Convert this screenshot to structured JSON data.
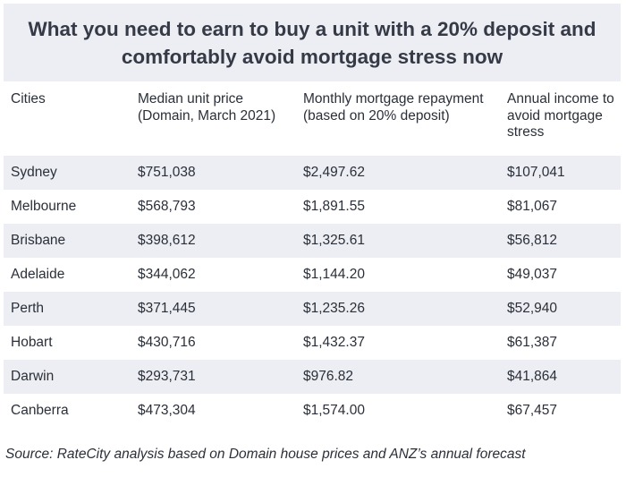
{
  "title": "What you need to earn to buy a unit with a 20% deposit and comfortably avoid mortgage stress now",
  "table": {
    "headers": [
      "Cities",
      "Median unit price (Domain, March 2021)",
      "Monthly mortgage repayment (based on 20% deposit)",
      "Annual income to avoid mortgage stress"
    ],
    "rows": [
      [
        "Sydney",
        "$751,038",
        "$2,497.62",
        "$107,041"
      ],
      [
        "Melbourne",
        "$568,793",
        "$1,891.55",
        "$81,067"
      ],
      [
        "Brisbane",
        "$398,612",
        "$1,325.61",
        "$56,812"
      ],
      [
        "Adelaide",
        "$344,062",
        "$1,144.20",
        "$49,037"
      ],
      [
        "Perth",
        "$371,445",
        "$1,235.26",
        "$52,940"
      ],
      [
        "Hobart",
        "$430,716",
        "$1,432.37",
        "$61,387"
      ],
      [
        "Darwin",
        "$293,731",
        "$976.82",
        "$41,864"
      ],
      [
        "Canberra",
        "$473,304",
        "$1,574.00",
        "$67,457"
      ]
    ]
  },
  "source": "Source: RateCity analysis based on Domain house prices and ANZ’s annual forecast",
  "colors": {
    "title_background": "#eceef3",
    "stripe": "#eceef3",
    "text": "#2b2f38"
  }
}
